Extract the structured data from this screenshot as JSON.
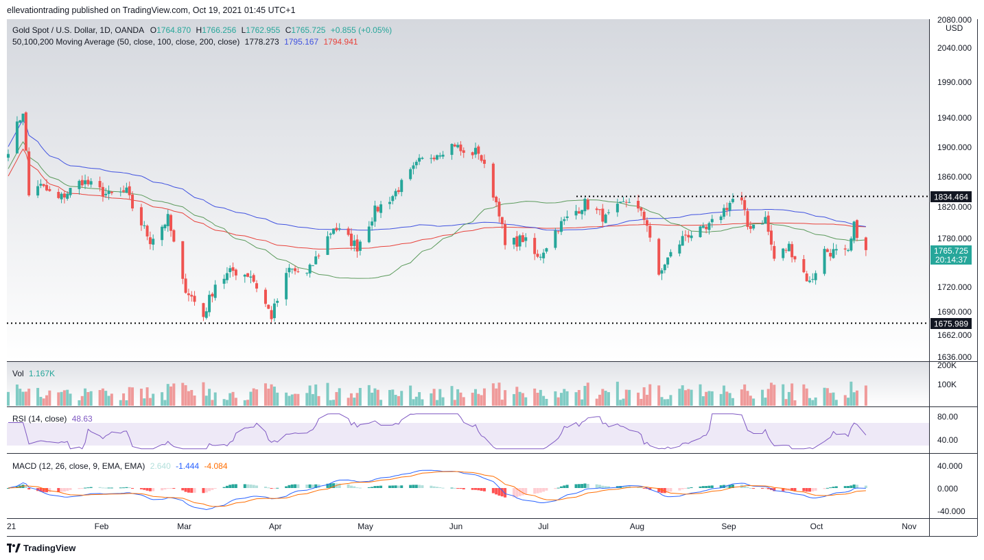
{
  "header": {
    "published": "ellevationtrading published on TradingView.com, Oct 19, 2021 01:45 UTC+1"
  },
  "legend": {
    "symbol": "Gold Spot / U.S. Dollar, 1D, OANDA",
    "o_label": "O",
    "o": "1764.870",
    "h_label": "H",
    "h": "1766.256",
    "l_label": "L",
    "l": "1762.955",
    "c_label": "C",
    "c": "1765.725",
    "change": "+0.855 (+0.05%)",
    "ma_label": "50,100,200 Moving Average (50, close, 100, close, 200, close)",
    "ma50": "1778.273",
    "ma100": "1795.167",
    "ma200": "1794.941"
  },
  "vol_legend": {
    "label": "Vol",
    "value": "1.167K"
  },
  "rsi_legend": {
    "label": "RSI (14, close)",
    "value": "48.63"
  },
  "macd_legend": {
    "label": "MACD (12, 26, close, 9, EMA, EMA)",
    "hist": "2.640",
    "macd": "-1.444",
    "signal": "-4.084"
  },
  "price_badges": {
    "resistance": "1834.464",
    "support": "1675.989",
    "last": "1765.725",
    "countdown": "20:14:37"
  },
  "price_axis": {
    "currency": "USD",
    "top_partial": "2080.000",
    "ticks": [
      "2040.000",
      "1990.000",
      "1940.000",
      "1900.000",
      "1860.000",
      "1820.000",
      "1780.000",
      "1720.000",
      "1690.000",
      "1662.000",
      "1636.000"
    ]
  },
  "vol_axis": {
    "ticks": [
      "200K",
      "100K"
    ]
  },
  "rsi_axis": {
    "ticks": [
      "80.00",
      "40.00"
    ]
  },
  "macd_axis": {
    "ticks": [
      "40.000",
      "0.000",
      "-40.000"
    ]
  },
  "time_axis": {
    "labels": [
      "21",
      "Feb",
      "Mar",
      "Apr",
      "May",
      "Jun",
      "Jul",
      "Aug",
      "Sep",
      "Oct",
      "Nov"
    ]
  },
  "brand": "TradingView",
  "colors": {
    "up": "#26a69a",
    "down": "#ef5350",
    "ma50": "#5b9a5b",
    "ma100": "#3f51e0",
    "ma200": "#e8413a",
    "rsi": "#7e57c2",
    "macd": "#2962ff",
    "signal": "#ff6d00"
  },
  "chart_data": {
    "type": "candlestick",
    "instrument": "Gold Spot / U.S. Dollar",
    "timeframe": "1D",
    "months": [
      "21",
      "Feb",
      "Mar",
      "Apr",
      "May",
      "Jun",
      "Jul",
      "Aug",
      "Sep",
      "Oct",
      "Nov"
    ],
    "anchors": [
      [
        "2021-01-01",
        1898
      ],
      [
        "2021-01-06",
        1950
      ],
      [
        "2021-01-08",
        1835
      ],
      [
        "2021-01-11",
        1850
      ],
      [
        "2021-01-18",
        1830
      ],
      [
        "2021-01-26",
        1855
      ],
      [
        "2021-02-04",
        1835
      ],
      [
        "2021-02-10",
        1840
      ],
      [
        "2021-02-12",
        1820
      ],
      [
        "2021-02-18",
        1778
      ],
      [
        "2021-02-24",
        1805
      ],
      [
        "2021-03-01",
        1725
      ],
      [
        "2021-03-08",
        1685
      ],
      [
        "2021-03-12",
        1725
      ],
      [
        "2021-03-18",
        1740
      ],
      [
        "2021-03-24",
        1735
      ],
      [
        "2021-03-31",
        1685
      ],
      [
        "2021-04-06",
        1742
      ],
      [
        "2021-04-12",
        1735
      ],
      [
        "2021-04-21",
        1795
      ],
      [
        "2021-04-29",
        1770
      ],
      [
        "2021-05-05",
        1815
      ],
      [
        "2021-05-11",
        1835
      ],
      [
        "2021-05-20",
        1880
      ],
      [
        "2021-05-27",
        1895
      ],
      [
        "2021-06-01",
        1905
      ],
      [
        "2021-06-04",
        1890
      ],
      [
        "2021-06-09",
        1895
      ],
      [
        "2021-06-16",
        1815
      ],
      [
        "2021-06-18",
        1770
      ],
      [
        "2021-06-24",
        1780
      ],
      [
        "2021-06-29",
        1755
      ],
      [
        "2021-07-06",
        1795
      ],
      [
        "2021-07-15",
        1825
      ],
      [
        "2021-07-22",
        1805
      ],
      [
        "2021-07-30",
        1830
      ],
      [
        "2021-08-05",
        1800
      ],
      [
        "2021-08-09",
        1730
      ],
      [
        "2021-08-11",
        1750
      ],
      [
        "2021-08-18",
        1785
      ],
      [
        "2021-08-25",
        1790
      ],
      [
        "2021-09-03",
        1830
      ],
      [
        "2021-09-06",
        1825
      ],
      [
        "2021-09-08",
        1795
      ],
      [
        "2021-09-14",
        1805
      ],
      [
        "2021-09-17",
        1755
      ],
      [
        "2021-09-22",
        1770
      ],
      [
        "2021-09-29",
        1725
      ],
      [
        "2021-10-04",
        1765
      ],
      [
        "2021-10-12",
        1760
      ],
      [
        "2021-10-14",
        1795
      ],
      [
        "2021-10-18",
        1765
      ]
    ],
    "resistance": 1834.464,
    "support": 1675.989,
    "last_close": 1765.725,
    "ma50_last": 1778.273,
    "ma100_last": 1795.167,
    "ma200_last": 1794.941,
    "rsi_last": 48.63,
    "macd_last": -1.444,
    "signal_last": -4.084,
    "hist_last": 2.64,
    "volume_last": "1.167K"
  }
}
